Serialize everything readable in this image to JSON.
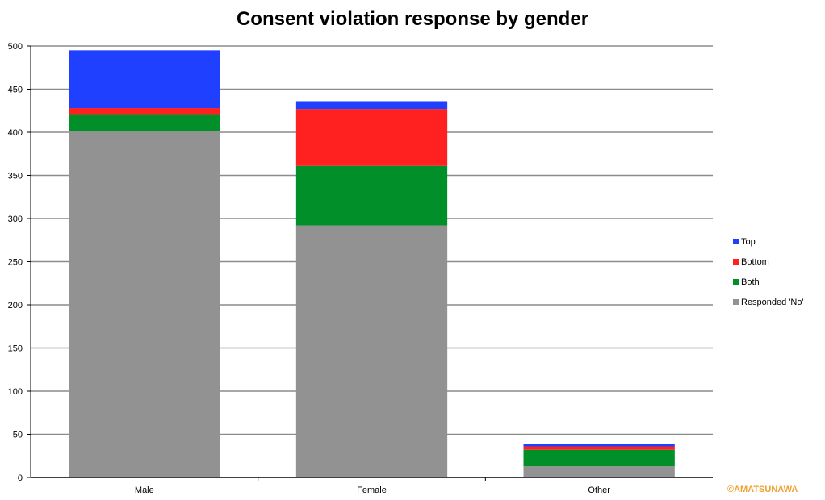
{
  "chart_data": {
    "type": "bar",
    "stacked": true,
    "title": "Consent violation response by gender",
    "categories": [
      "Male",
      "Female",
      "Other"
    ],
    "series": [
      {
        "name": "Responded 'No'",
        "color": "#929292",
        "values": [
          401,
          292,
          13
        ]
      },
      {
        "name": "Both",
        "color": "#008f28",
        "values": [
          20,
          69,
          19
        ]
      },
      {
        "name": "Bottom",
        "color": "#ff2020",
        "values": [
          7,
          66,
          4
        ]
      },
      {
        "name": "Top",
        "color": "#2040ff",
        "values": [
          67,
          9,
          3
        ]
      }
    ],
    "ylim": [
      0,
      500
    ],
    "yticks": [
      0,
      50,
      100,
      150,
      200,
      250,
      300,
      350,
      400,
      450,
      500
    ],
    "grid": true,
    "legend_position": "right",
    "legend_order": [
      "Top",
      "Bottom",
      "Both",
      "Responded 'No'"
    ]
  },
  "watermark": "©AMATSUNAWA"
}
